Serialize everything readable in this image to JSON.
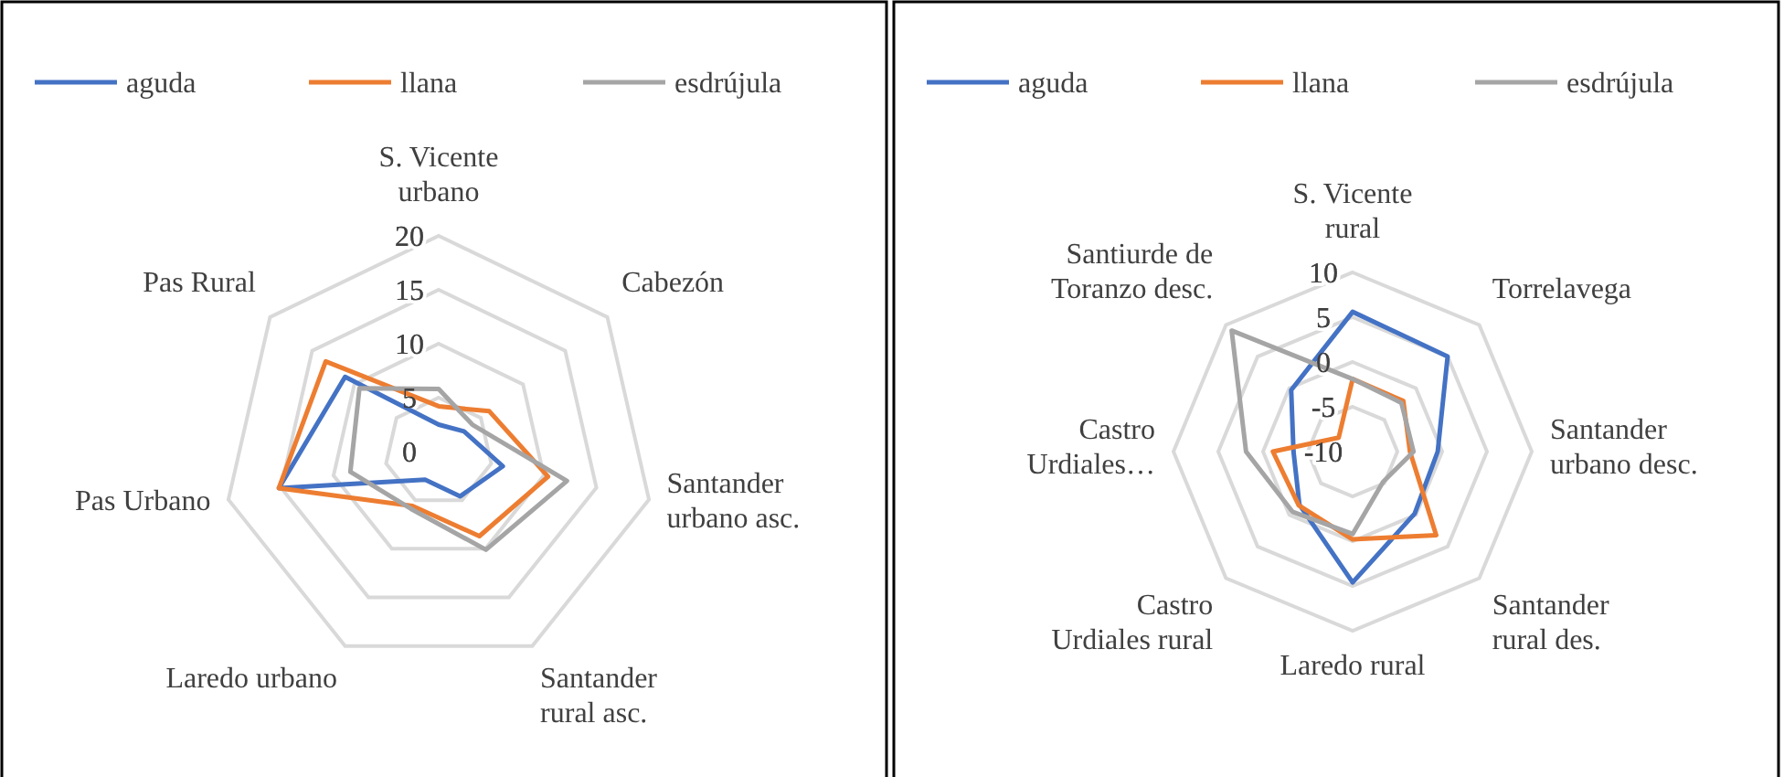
{
  "chart_data": [
    {
      "type": "radar",
      "categories": [
        "S. Vicente urbano",
        "Cabezón",
        "Santander urbano asc.",
        "Santander rural asc.",
        "Laredo urbano",
        "Pas Urbano",
        "Pas Rural"
      ],
      "series": [
        {
          "name": "aguda",
          "color": "#4472c4",
          "values": [
            2.5,
            3,
            6.1,
            4.6,
            2.9,
            15.2,
            11.1
          ]
        },
        {
          "name": "llana",
          "color": "#ed7d31",
          "values": [
            4.2,
            6,
            10.4,
            8.7,
            5.6,
            15.2,
            13.4
          ]
        },
        {
          "name": "esdrújula",
          "color": "#a5a5a5",
          "values": [
            5.8,
            4,
            12.2,
            10.1,
            5.9,
            8.4,
            9.4
          ]
        }
      ],
      "ylim": [
        0,
        20
      ],
      "yticks": [
        0,
        5,
        10,
        15,
        20
      ],
      "grid": true,
      "legend": "top",
      "marker": "none"
    },
    {
      "type": "radar",
      "categories": [
        "S. Vicente rural",
        "Torrelavega",
        "Santander urbano desc.",
        "Santander rural des.",
        "Laredo rural",
        "Castro Urdiales rural",
        "Castro Urdiales…",
        "Santiurde de Toranzo desc."
      ],
      "series": [
        {
          "name": "aguda",
          "color": "#4472c4",
          "values": [
            5.6,
            5,
            -0.5,
            -0.2,
            4.6,
            -1.6,
            -3.4,
            -0.3
          ]
        },
        {
          "name": "llana",
          "color": "#ed7d31",
          "values": [
            -1.9,
            -2,
            -3.6,
            3.2,
            -0.2,
            -1.5,
            -1.1,
            -7.8
          ]
        },
        {
          "name": "esdrújula",
          "color": "#a5a5a5",
          "values": [
            -1.9,
            -2.3,
            -3.2,
            -5.2,
            -0.8,
            -0.5,
            1.9,
            9.1
          ]
        }
      ],
      "ylim": [
        -10,
        10
      ],
      "yticks": [
        -10,
        -5,
        0,
        5,
        10
      ],
      "grid": true,
      "legend": "top",
      "marker": "none"
    }
  ]
}
